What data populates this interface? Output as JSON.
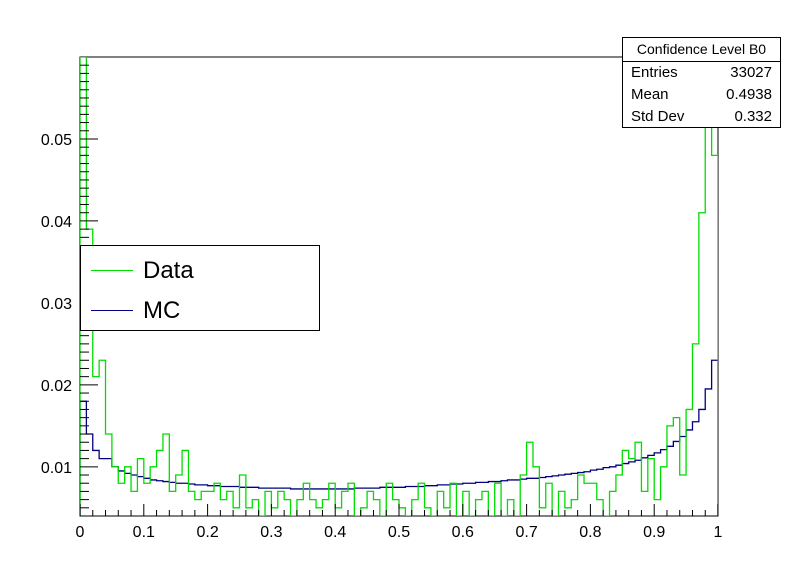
{
  "colors": {
    "data": "#00dd00",
    "mc": "#000080",
    "axis": "#000000",
    "background": "#ffffff"
  },
  "stats": {
    "title": "Confidence Level B0",
    "rows": [
      {
        "key": "Entries",
        "value": "33027"
      },
      {
        "key": "Mean",
        "value": "0.4938"
      },
      {
        "key": "Std Dev",
        "value": "0.332"
      }
    ]
  },
  "legend": {
    "data_label": "Data",
    "mc_label": "MC",
    "placement": "left-middle"
  },
  "chart_data": {
    "type": "histogram-step",
    "xlim": [
      0,
      1
    ],
    "ylim": [
      0.004,
      0.06
    ],
    "bins": 100,
    "xticks": [
      "0",
      "0.1",
      "0.2",
      "0.3",
      "0.4",
      "0.5",
      "0.6",
      "0.7",
      "0.8",
      "0.9",
      "1"
    ],
    "yticks": [
      "0.01",
      "0.02",
      "0.03",
      "0.04",
      "0.05"
    ],
    "grid": false,
    "series": [
      {
        "name": "Data",
        "values": [
          0.062,
          0.039,
          0.021,
          0.023,
          0.014,
          0.01,
          0.008,
          0.01,
          0.007,
          0.011,
          0.008,
          0.01,
          0.012,
          0.014,
          0.007,
          0.009,
          0.012,
          0.007,
          0.006,
          0.007,
          0.007,
          0.008,
          0.006,
          0.007,
          0.005,
          0.009,
          0.005,
          0.006,
          0.004,
          0.007,
          0.005,
          0.007,
          0.006,
          0.004,
          0.006,
          0.008,
          0.006,
          0.005,
          0.006,
          0.008,
          0.005,
          0.007,
          0.008,
          0.004,
          0.005,
          0.007,
          0.006,
          0.004,
          0.008,
          0.006,
          0.005,
          0.004,
          0.006,
          0.008,
          0.005,
          0.004,
          0.007,
          0.005,
          0.008,
          0.004,
          0.007,
          0.004,
          0.006,
          0.007,
          0.003,
          0.008,
          0.004,
          0.006,
          0.003,
          0.009,
          0.013,
          0.01,
          0.005,
          0.008,
          0.003,
          0.007,
          0.005,
          0.006,
          0.009,
          0.008,
          0.008,
          0.006,
          0.004,
          0.007,
          0.009,
          0.012,
          0.011,
          0.013,
          0.007,
          0.011,
          0.006,
          0.01,
          0.015,
          0.016,
          0.009,
          0.017,
          0.025,
          0.041,
          0.059,
          0.048
        ]
      },
      {
        "name": "MC",
        "values": [
          0.018,
          0.014,
          0.012,
          0.011,
          0.011,
          0.01,
          0.0095,
          0.0092,
          0.009,
          0.0088,
          0.0086,
          0.0084,
          0.0083,
          0.0082,
          0.0081,
          0.008,
          0.008,
          0.0079,
          0.0078,
          0.0078,
          0.0077,
          0.0077,
          0.0076,
          0.0076,
          0.0076,
          0.0075,
          0.0075,
          0.0075,
          0.0074,
          0.0074,
          0.0074,
          0.0074,
          0.0074,
          0.0073,
          0.0073,
          0.0073,
          0.0073,
          0.0073,
          0.0073,
          0.0073,
          0.0073,
          0.0073,
          0.0073,
          0.0074,
          0.0074,
          0.0074,
          0.0074,
          0.0075,
          0.0075,
          0.0075,
          0.0075,
          0.0076,
          0.0076,
          0.0076,
          0.0077,
          0.0077,
          0.0078,
          0.0078,
          0.0079,
          0.0079,
          0.008,
          0.008,
          0.0081,
          0.0081,
          0.0082,
          0.0082,
          0.0083,
          0.0084,
          0.0084,
          0.0085,
          0.0086,
          0.0086,
          0.0087,
          0.0088,
          0.0089,
          0.009,
          0.0091,
          0.0092,
          0.0093,
          0.0094,
          0.0096,
          0.0097,
          0.0099,
          0.01,
          0.0102,
          0.0104,
          0.0106,
          0.0108,
          0.0111,
          0.0114,
          0.0117,
          0.0121,
          0.0125,
          0.0131,
          0.0137,
          0.0145,
          0.0155,
          0.017,
          0.0195,
          0.023
        ]
      }
    ]
  }
}
